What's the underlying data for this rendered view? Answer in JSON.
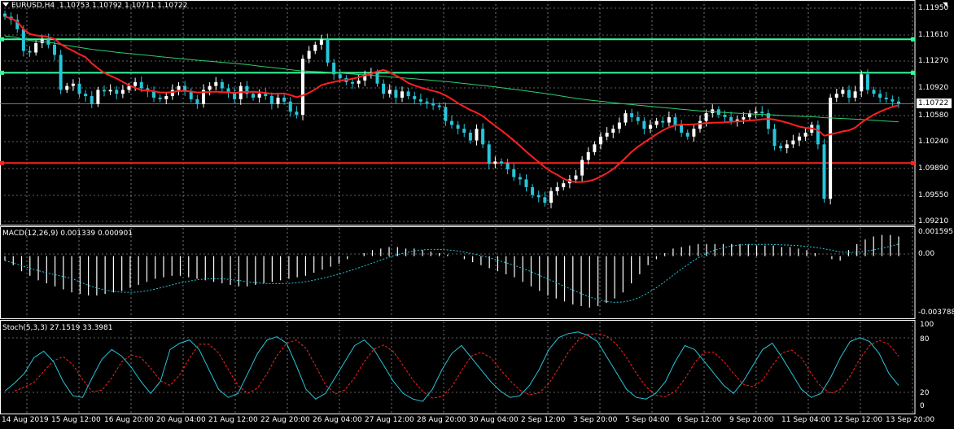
{
  "header": {
    "symbol_tf": "EURUSD,H4",
    "ohlc": "1.10753 1.10792 1.10711 1.10722",
    "macd": "MACD(12,26,9) 0.001339 0.000901",
    "stoch": "Stoch(5,3,3) 27.1519 33.3981"
  },
  "price_axis": {
    "labels": [
      "1.11950",
      "1.11610",
      "1.11270",
      "1.10920",
      "1.10580",
      "1.10240",
      "1.09890",
      "1.09550",
      "1.09210"
    ],
    "current": "1.10722"
  },
  "macd_axis": {
    "labels": [
      "0.001595",
      "0.00",
      "-0.003788"
    ]
  },
  "stoch_axis": {
    "labels": [
      "100",
      "80",
      "20",
      "0"
    ]
  },
  "time_axis": {
    "labels": [
      "14 Aug 2019",
      "15 Aug 12:00",
      "16 Aug 20:00",
      "20 Aug 04:00",
      "21 Aug 12:00",
      "22 Aug 20:00",
      "26 Aug 04:00",
      "27 Aug 12:00",
      "28 Aug 20:00",
      "30 Aug 04:00",
      "2 Sep 12:00",
      "3 Sep 20:00",
      "5 Sep 04:00",
      "6 Sep 12:00",
      "9 Sep 20:00",
      "11 Sep 04:00",
      "12 Sep 12:00",
      "13 Sep 20:00"
    ]
  },
  "colors": {
    "bull": "#ffffff",
    "bear": "#26c6da",
    "grid": "#c0c0c0",
    "ma_slow": "#2ecc71",
    "ma_fast": "#ff2020",
    "level_green": "#33ff99",
    "level_red": "#ff2020",
    "macd_signal": "#26c6da",
    "stoch_main": "#26c6da",
    "stoch_signal": "#ff2020"
  },
  "icons": {
    "header_marker": "triangle-down-icon",
    "autoscroll": "corner-arrow-icon"
  },
  "chart_data": {
    "type": "candlestick",
    "symbol": "EURUSD",
    "timeframe": "H4",
    "horizontal_levels": [
      1.1155,
      1.1112,
      1.0996
    ],
    "price_range": [
      1.0918,
      1.12
    ],
    "closes": [
      1.1184,
      1.118,
      1.1168,
      1.114,
      1.1138,
      1.115,
      1.1155,
      1.1148,
      1.1135,
      1.109,
      1.1095,
      1.1098,
      1.1085,
      1.1082,
      1.1072,
      1.109,
      1.1088,
      1.109,
      1.1085,
      1.109,
      1.1095,
      1.11,
      1.1092,
      1.1088,
      1.108,
      1.1078,
      1.1082,
      1.109,
      1.1095,
      1.1088,
      1.1078,
      1.1072,
      1.109,
      1.1095,
      1.11,
      1.1092,
      1.1086,
      1.1078,
      1.1095,
      1.1085,
      1.108,
      1.1085,
      1.1082,
      1.1072,
      1.108,
      1.1075,
      1.1062,
      1.1058,
      1.113,
      1.114,
      1.1148,
      1.1155,
      1.1125,
      1.111,
      1.1105,
      1.11,
      1.1098,
      1.1102,
      1.111,
      1.1112,
      1.1098,
      1.1085,
      1.109,
      1.108,
      1.1088,
      1.1082,
      1.1078,
      1.1075,
      1.1073,
      1.107,
      1.1068,
      1.105,
      1.1045,
      1.104,
      1.1035,
      1.1025,
      1.104,
      1.102,
      1.0995,
      1.0998,
      1.0996,
      1.0988,
      1.0978,
      1.0975,
      1.0965,
      1.0955,
      1.0952,
      1.0945,
      1.096,
      1.0965,
      1.097,
      1.0975,
      1.098,
      1.1,
      1.101,
      1.102,
      1.103,
      1.1035,
      1.104,
      1.1048,
      1.106,
      1.1055,
      1.105,
      1.104,
      1.1045,
      1.105,
      1.1048,
      1.1055,
      1.1045,
      1.1035,
      1.103,
      1.104,
      1.105,
      1.106,
      1.1065,
      1.1058,
      1.1055,
      1.105,
      1.1052,
      1.1055,
      1.106,
      1.1062,
      1.106,
      1.104,
      1.1018,
      1.1015,
      1.102,
      1.1025,
      1.103,
      1.1035,
      1.1045,
      1.102,
      1.095,
      1.108,
      1.1085,
      1.109,
      1.108,
      1.1088,
      1.111,
      1.109,
      1.1085,
      1.108,
      1.1078,
      1.1075,
      1.10722
    ],
    "ma_slow_endpoints": [
      1.1155,
      1.1048
    ],
    "macd": {
      "range": [
        -0.003788,
        0.001595
      ],
      "histogram": [
        -0.0003,
        -0.0006,
        -0.001,
        -0.0013,
        -0.0016,
        -0.0018,
        -0.002,
        -0.0022,
        -0.0024,
        -0.0025,
        -0.0026,
        -0.0026,
        -0.0025,
        -0.0024,
        -0.0023,
        -0.0021,
        -0.0019,
        -0.0017,
        -0.0015,
        -0.0014,
        -0.0013,
        -0.0013,
        -0.0014,
        -0.0015,
        -0.0016,
        -0.0017,
        -0.0018,
        -0.0019,
        -0.002,
        -0.002,
        -0.0019,
        -0.0018,
        -0.0017,
        -0.0016,
        -0.0015,
        -0.0014,
        -0.0013,
        -0.0011,
        -0.0009,
        -0.0007,
        -0.0005,
        -0.0002,
        0.0,
        0.0002,
        0.0004,
        0.0005,
        0.0006,
        0.0006,
        0.0005,
        0.0005,
        0.0004,
        0.0003,
        0.0002,
        0.0001,
        0.0,
        -0.0002,
        -0.0004,
        -0.0006,
        -0.0008,
        -0.001,
        -0.0012,
        -0.0014,
        -0.0017,
        -0.002,
        -0.0023,
        -0.0026,
        -0.0028,
        -0.003,
        -0.0032,
        -0.0033,
        -0.0034,
        -0.0033,
        -0.0031,
        -0.0028,
        -0.0024,
        -0.0018,
        -0.0012,
        -0.0006,
        -0.0002,
        0.0002,
        0.0005,
        0.0006,
        0.0007,
        0.0008,
        0.0008,
        0.0008,
        0.0008,
        0.0008,
        0.0008,
        0.0008,
        0.0007,
        0.0007,
        0.0007,
        0.0006,
        0.0006,
        0.0005,
        0.0004,
        0.0002,
        0.0,
        -0.0002,
        -0.0003,
        0.0004,
        0.0008,
        0.0011,
        0.0013,
        0.0014,
        0.0014,
        0.0013
      ]
    },
    "stoch": {
      "range": [
        0,
        100
      ],
      "levels": [
        80,
        20
      ],
      "main": [
        18,
        28,
        40,
        60,
        68,
        55,
        30,
        12,
        10,
        35,
        58,
        70,
        62,
        48,
        30,
        15,
        30,
        70,
        78,
        82,
        70,
        45,
        20,
        10,
        15,
        40,
        65,
        82,
        86,
        78,
        50,
        20,
        8,
        15,
        35,
        55,
        75,
        82,
        70,
        50,
        30,
        15,
        8,
        5,
        20,
        45,
        65,
        75,
        60,
        45,
        30,
        18,
        10,
        12,
        25,
        45,
        70,
        85,
        90,
        92,
        88,
        80,
        60,
        40,
        20,
        10,
        8,
        15,
        30,
        55,
        75,
        70,
        55,
        40,
        25,
        15,
        30,
        50,
        70,
        78,
        60,
        40,
        20,
        10,
        15,
        35,
        60,
        80,
        85,
        80,
        65,
        40,
        25
      ]
    }
  }
}
